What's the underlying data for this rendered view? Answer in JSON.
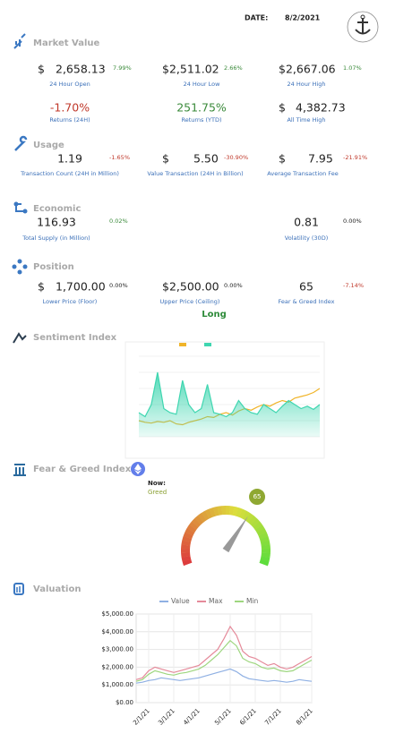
{
  "header": {
    "date_label": "DATE:",
    "date": "8/2/2021"
  },
  "market_value": {
    "title": "Market Value",
    "items": [
      {
        "currency": "$",
        "value": "2,658.13",
        "change": "7.99%",
        "label": "24 Hour Open"
      },
      {
        "value": "$2,511.02",
        "change": "2.66%",
        "label": "24 Hour Low"
      },
      {
        "value": "$2,667.06",
        "change": "1.07%",
        "label": "24 Hour High"
      },
      {
        "value": "-1.70%",
        "label": "Returns (24H)"
      },
      {
        "value": "251.75%",
        "label": "Returns (YTD)"
      },
      {
        "currency": "$",
        "value": "4,382.73",
        "label": "All Time High"
      }
    ]
  },
  "usage": {
    "title": "Usage",
    "items": [
      {
        "value": "1.19",
        "change": "-1.65%",
        "label": "Transaction Count (24H in Million)"
      },
      {
        "currency": "$",
        "value": "5.50",
        "change": "-30.90%",
        "label": "Value Transaction (24H in Billion)"
      },
      {
        "currency": "$",
        "value": "7.95",
        "change": "-21.91%",
        "label": "Average Transaction Fee"
      }
    ]
  },
  "economic": {
    "title": "Economic",
    "items": [
      {
        "value": "116.93",
        "change": "0.02%",
        "label": "Total Supply (in Million)"
      },
      {
        "value": "0.81",
        "change": "0.00%",
        "label": "Volatility (30D)"
      }
    ]
  },
  "position": {
    "title": "Position",
    "items": [
      {
        "currency": "$",
        "value": "1,700.00",
        "change": "0.00%",
        "label": "Lower Price (Floor)"
      },
      {
        "value": "$2,500.00",
        "change": "0.00%",
        "label": "Upper Price (Ceiling)"
      },
      {
        "value": "65",
        "change": "-7.14%",
        "label": "Fear & Greed Index"
      }
    ],
    "signal": "Long"
  },
  "chart_data": [
    {
      "type": "line",
      "title": "Sentiment Index",
      "ylim": [
        0,
        100
      ],
      "series": [
        {
          "color": "#f0b429",
          "values": [
            20,
            18,
            17,
            19,
            18,
            20,
            16,
            15,
            18,
            20,
            22,
            25,
            24,
            28,
            30,
            27,
            32,
            35,
            33,
            37,
            40,
            38,
            42,
            45,
            43,
            48,
            50,
            52,
            55,
            60
          ]
        },
        {
          "color": "#3fd6b0",
          "fill": true,
          "values": [
            30,
            25,
            40,
            80,
            35,
            30,
            28,
            70,
            40,
            30,
            35,
            65,
            30,
            28,
            25,
            30,
            45,
            35,
            30,
            28,
            40,
            35,
            30,
            38,
            45,
            40,
            35,
            38,
            34,
            40
          ]
        }
      ]
    },
    {
      "type": "gauge",
      "title": "Fear & Greed Index",
      "now_label": "Now:",
      "status": "Greed",
      "value": 65,
      "range": [
        0,
        100
      ]
    },
    {
      "type": "line",
      "title": "Valuation",
      "categories": [
        null,
        null,
        "2/1/21",
        null,
        null,
        null,
        "3/1/21",
        null,
        null,
        null,
        "4/1/21",
        null,
        null,
        null,
        null,
        "5/1/21",
        null,
        null,
        null,
        "6/1/21",
        null,
        null,
        null,
        "7/1/21",
        null,
        null,
        null,
        null,
        "8/1/21"
      ],
      "series": [
        {
          "name": "Value",
          "color": "#8fb0e3",
          "values": [
            1100,
            1150,
            1250,
            1300,
            1400,
            1350,
            1300,
            1250,
            1300,
            1350,
            1400,
            1500,
            1600,
            1700,
            1800,
            1900,
            1750,
            1500,
            1350,
            1300,
            1250,
            1200,
            1250,
            1200,
            1150,
            1200,
            1300,
            1250,
            1200
          ]
        },
        {
          "name": "Max",
          "color": "#e58a9a",
          "values": [
            1300,
            1400,
            1800,
            2000,
            1900,
            1800,
            1700,
            1800,
            1900,
            2000,
            2100,
            2400,
            2700,
            3000,
            3600,
            4300,
            3800,
            2900,
            2600,
            2500,
            2300,
            2100,
            2200,
            2000,
            1900,
            2000,
            2200,
            2400,
            2600
          ]
        },
        {
          "name": "Min",
          "color": "#9ed67f",
          "values": [
            1200,
            1300,
            1600,
            1800,
            1700,
            1600,
            1550,
            1650,
            1700,
            1800,
            1900,
            2100,
            2400,
            2700,
            3100,
            3500,
            3200,
            2500,
            2300,
            2200,
            2000,
            1900,
            1950,
            1800,
            1750,
            1800,
            2000,
            2200,
            2400
          ]
        }
      ],
      "ylim": [
        0,
        5000
      ],
      "yticks": [
        {
          "value": 0,
          "label": "$0.00"
        },
        {
          "value": 1000,
          "label": "$1,000.00"
        },
        {
          "value": 2000,
          "label": "$2,000.00"
        },
        {
          "value": 3000,
          "label": "$3,000.00"
        },
        {
          "value": 4000,
          "label": "$4,000.00"
        },
        {
          "value": 5000,
          "label": "$5,000.00"
        }
      ],
      "grid": true
    }
  ]
}
